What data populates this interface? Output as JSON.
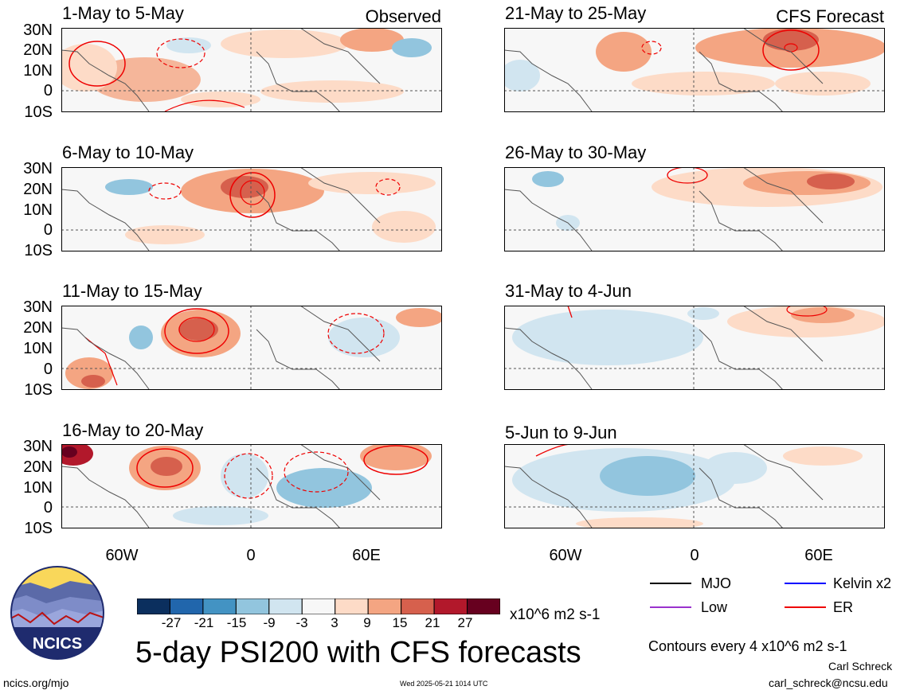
{
  "panels_left": [
    {
      "title": "1-May to 5-May",
      "tag": "Observed"
    },
    {
      "title": "6-May to 10-May",
      "tag": ""
    },
    {
      "title": "11-May to 15-May",
      "tag": ""
    },
    {
      "title": "16-May to 20-May",
      "tag": ""
    }
  ],
  "panels_right": [
    {
      "title": "21-May to 25-May",
      "tag": "CFS Forecast"
    },
    {
      "title": "26-May to 30-May",
      "tag": ""
    },
    {
      "title": "31-May to 4-Jun",
      "tag": ""
    },
    {
      "title": "5-Jun to 9-Jun",
      "tag": ""
    }
  ],
  "lat_labels": [
    "30N",
    "20N",
    "10N",
    "0",
    "10S"
  ],
  "lon_labels": [
    "60W",
    "0",
    "60E"
  ],
  "colorbar": {
    "colors": [
      "#0b2f5e",
      "#2166ac",
      "#4393c3",
      "#92c5de",
      "#d1e5f0",
      "#f7f7f7",
      "#fddbc7",
      "#f4a582",
      "#d6604d",
      "#b2182b",
      "#67001f"
    ],
    "labels": [
      "-27",
      "-21",
      "-15",
      "-9",
      "-3",
      "3",
      "9",
      "15",
      "21",
      "27"
    ],
    "units": "x10^6 m2 s-1"
  },
  "legend": {
    "mjo": {
      "label": "MJO",
      "color": "#000000"
    },
    "kelvin": {
      "label": "Kelvin x2",
      "color": "#0000ff"
    },
    "low": {
      "label": "Low",
      "color": "#9a32cd"
    },
    "er": {
      "label": "ER",
      "color": "#ee0000"
    }
  },
  "main_title": "5-day PSI200 with CFS forecasts",
  "contour_note": "Contours every 4 x10^6 m2 s-1",
  "author": "Carl Schreck",
  "email": "carl_schreck@ncsu.edu",
  "site": "ncics.org/mjo",
  "timestamp": "Wed 2025-05-21 1014 UTC",
  "logo_text": "NCICS"
}
